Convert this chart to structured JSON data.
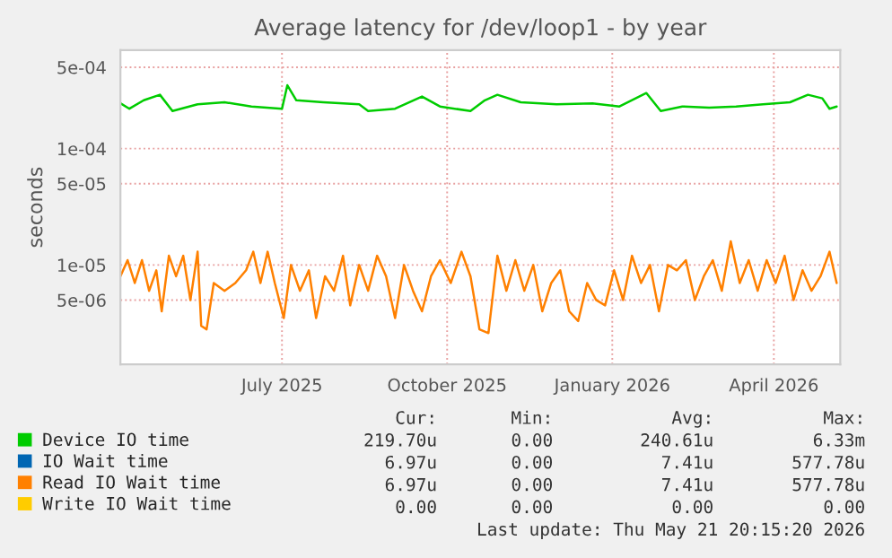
{
  "chart_data": {
    "type": "line",
    "title": "Average latency for /dev/loop1 - by year",
    "ylabel": "seconds",
    "log": true,
    "grid": true,
    "legend": "bottom",
    "xlim": [
      "2025-04-02",
      "2026-05-08"
    ],
    "ylim": [
      1.4e-06,
      0.0007
    ],
    "xticks": [
      {
        "value": "2025-07-01",
        "label": "July 2025"
      },
      {
        "value": "2025-10-01",
        "label": "October 2025"
      },
      {
        "value": "2026-01-01",
        "label": "January 2026"
      },
      {
        "value": "2026-04-01",
        "label": "April 2026"
      }
    ],
    "yticks": [
      {
        "value": 5e-06,
        "label": "5e-06"
      },
      {
        "value": 1e-05,
        "label": "1e-05"
      },
      {
        "value": 5e-05,
        "label": "5e-05"
      },
      {
        "value": 0.0001,
        "label": "1e-04"
      },
      {
        "value": 0.0005,
        "label": "5e-04"
      }
    ],
    "series": [
      {
        "name": "Device IO time",
        "color": "#00cc00",
        "x": [
          "2025-04-02",
          "2025-04-07",
          "2025-04-15",
          "2025-04-24",
          "2025-05-01",
          "2025-05-15",
          "2025-05-30",
          "2025-06-14",
          "2025-07-01",
          "2025-07-04",
          "2025-07-09",
          "2025-07-24",
          "2025-08-13",
          "2025-08-18",
          "2025-09-02",
          "2025-09-17",
          "2025-09-27",
          "2025-10-14",
          "2025-10-22",
          "2025-10-29",
          "2025-11-11",
          "2025-12-01",
          "2025-12-21",
          "2026-01-05",
          "2026-01-20",
          "2026-01-28",
          "2026-02-09",
          "2026-02-24",
          "2026-03-11",
          "2026-03-26",
          "2026-04-10",
          "2026-04-20",
          "2026-04-28",
          "2026-05-02",
          "2026-05-06"
        ],
        "values": [
          0.000245,
          0.00022,
          0.00026,
          0.00029,
          0.00021,
          0.00024,
          0.00025,
          0.00023,
          0.00022,
          0.00035,
          0.00026,
          0.00025,
          0.00024,
          0.00021,
          0.00022,
          0.00028,
          0.00023,
          0.00021,
          0.00026,
          0.00029,
          0.00025,
          0.00024,
          0.000245,
          0.00023,
          0.0003,
          0.00021,
          0.00023,
          0.000225,
          0.00023,
          0.00024,
          0.00025,
          0.00029,
          0.00027,
          0.00022,
          0.00023
        ]
      },
      {
        "name": "IO Wait time",
        "color": "#0066b3"
      },
      {
        "name": "Read IO Wait time",
        "color": "#ff8000",
        "x": [
          "2025-04-02",
          "2025-04-06",
          "2025-04-10",
          "2025-04-14",
          "2025-04-18",
          "2025-04-22",
          "2025-04-25",
          "2025-04-29",
          "2025-05-03",
          "2025-05-07",
          "2025-05-11",
          "2025-05-15",
          "2025-05-17",
          "2025-05-20",
          "2025-05-24",
          "2025-05-30",
          "2025-06-05",
          "2025-06-11",
          "2025-06-15",
          "2025-06-19",
          "2025-06-23",
          "2025-06-27",
          "2025-07-02",
          "2025-07-06",
          "2025-07-11",
          "2025-07-16",
          "2025-07-20",
          "2025-07-25",
          "2025-07-30",
          "2025-08-04",
          "2025-08-08",
          "2025-08-13",
          "2025-08-18",
          "2025-08-23",
          "2025-08-28",
          "2025-09-02",
          "2025-09-07",
          "2025-09-12",
          "2025-09-17",
          "2025-09-22",
          "2025-09-27",
          "2025-10-03",
          "2025-10-09",
          "2025-10-14",
          "2025-10-19",
          "2025-10-24",
          "2025-10-29",
          "2025-11-03",
          "2025-11-08",
          "2025-11-13",
          "2025-11-18",
          "2025-11-23",
          "2025-11-28",
          "2025-12-03",
          "2025-12-08",
          "2025-12-13",
          "2025-12-18",
          "2025-12-23",
          "2025-12-28",
          "2026-01-02",
          "2026-01-07",
          "2026-01-12",
          "2026-01-17",
          "2026-01-22",
          "2026-01-27",
          "2026-02-01",
          "2026-02-06",
          "2026-02-11",
          "2026-02-16",
          "2026-02-21",
          "2026-02-26",
          "2026-03-03",
          "2026-03-08",
          "2026-03-13",
          "2026-03-18",
          "2026-03-23",
          "2026-03-28",
          "2026-04-02",
          "2026-04-07",
          "2026-04-12",
          "2026-04-17",
          "2026-04-22",
          "2026-04-27",
          "2026-05-02",
          "2026-05-06"
        ],
        "values": [
          8e-06,
          1.1e-05,
          7e-06,
          1.1e-05,
          6e-06,
          9e-06,
          4e-06,
          1.2e-05,
          8e-06,
          1.2e-05,
          5e-06,
          1.3e-05,
          3e-06,
          2.8e-06,
          7e-06,
          6e-06,
          7e-06,
          9e-06,
          1.3e-05,
          7e-06,
          1.3e-05,
          7e-06,
          3.5e-06,
          1e-05,
          6e-06,
          9e-06,
          3.5e-06,
          8e-06,
          6e-06,
          1.2e-05,
          4.5e-06,
          1e-05,
          6e-06,
          1.2e-05,
          8e-06,
          3.5e-06,
          1e-05,
          6e-06,
          4e-06,
          8e-06,
          1.1e-05,
          7e-06,
          1.3e-05,
          8e-06,
          2.8e-06,
          2.6e-06,
          1.2e-05,
          6e-06,
          1.1e-05,
          6e-06,
          1e-05,
          4e-06,
          7e-06,
          9e-06,
          4e-06,
          3.3e-06,
          7e-06,
          5e-06,
          4.5e-06,
          9e-06,
          5e-06,
          1.2e-05,
          7e-06,
          1e-05,
          4e-06,
          1e-05,
          9e-06,
          1.1e-05,
          5e-06,
          8e-06,
          1.1e-05,
          6e-06,
          1.6e-05,
          7e-06,
          1.1e-05,
          6e-06,
          1.1e-05,
          7e-06,
          1.2e-05,
          5e-06,
          9e-06,
          6e-06,
          8e-06,
          1.3e-05,
          7e-06
        ]
      },
      {
        "name": "Write IO Wait time",
        "color": "#ffcc00"
      }
    ],
    "annotations": [
      "Cur:",
      "Min:",
      "Avg:",
      "Max:",
      "219.70u",
      "0.00",
      "240.61u",
      "6.33m",
      "6.97u",
      "0.00",
      "7.41u",
      "577.78u",
      "6.97u",
      "0.00",
      "7.41u",
      "577.78u",
      "0.00",
      "0.00",
      "0.00",
      "0.00",
      "Last update: Thu May 21 20:15:20 2026"
    ]
  }
}
